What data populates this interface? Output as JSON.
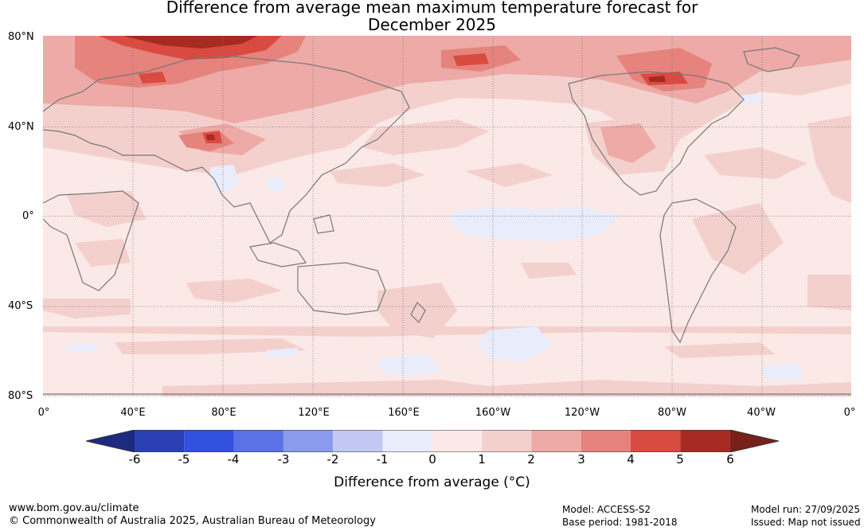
{
  "title": {
    "line1": "Difference from average mean maximum temperature forecast for",
    "line2": "December 2025"
  },
  "axes": {
    "lat_labels": [
      "80°N",
      "40°N",
      "0°",
      "40°S",
      "80°S"
    ],
    "lon_labels": [
      "0°",
      "40°E",
      "80°E",
      "120°E",
      "160°E",
      "160°W",
      "120°W",
      "80°W",
      "40°W",
      "0°"
    ]
  },
  "colorbar": {
    "label": "Difference from average (°C)",
    "ticks": [
      "-6",
      "-5",
      "-4",
      "-3",
      "-2",
      "-1",
      "0",
      "1",
      "2",
      "3",
      "4",
      "5",
      "6"
    ],
    "colors": [
      "#1c2a80",
      "#2b40b5",
      "#3250e0",
      "#5a72e6",
      "#8a9aec",
      "#c1c9f3",
      "#e9ecfb",
      "#fbe9e7",
      "#f4d0cd",
      "#edaaa6",
      "#e6837d",
      "#d94b40",
      "#a62a22",
      "#78201a"
    ]
  },
  "footer": {
    "website": "www.bom.gov.au/climate",
    "copyright": "© Commonwealth of Australia 2025, Australian Bureau of Meteorology",
    "model": "Model: ACCESS-S2",
    "base_period": "Base period: 1981-2018",
    "model_run": "Model run: 27/09/2025",
    "issued": "Issued: Map not issued"
  }
}
